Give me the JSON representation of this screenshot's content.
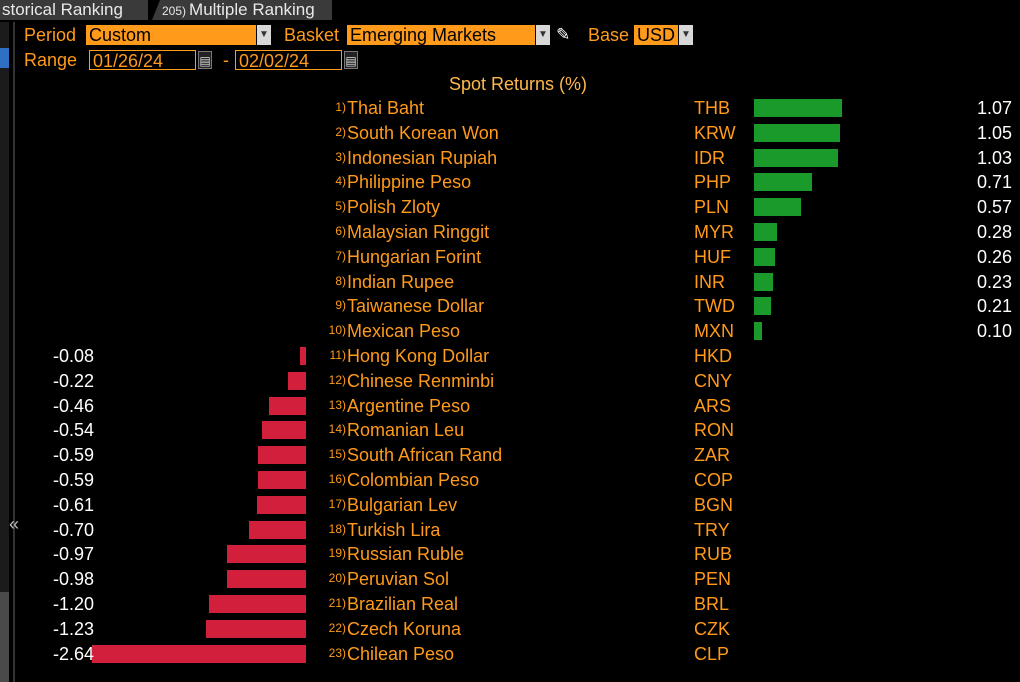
{
  "tabs": [
    {
      "num": "",
      "label": "storical Ranking"
    },
    {
      "num": "205)",
      "label": "Multiple Ranking"
    }
  ],
  "controls": {
    "period_label": "Period",
    "period_value": "Custom",
    "basket_label": "Basket",
    "basket_value": "Emerging Markets",
    "base_label": "Base",
    "base_value": "USD",
    "range_label": "Range",
    "range_start": "01/26/24",
    "range_sep": "-",
    "range_end": "02/02/24"
  },
  "collapse_glyph": "«",
  "chart_data": {
    "type": "bar",
    "title": "Spot Returns (%)",
    "columns": [
      "rank",
      "name",
      "code",
      "value"
    ],
    "rows": [
      {
        "rank": "1)",
        "name": "Thai Baht",
        "code": "THB",
        "value": 1.07
      },
      {
        "rank": "2)",
        "name": "South Korean Won",
        "code": "KRW",
        "value": 1.05
      },
      {
        "rank": "3)",
        "name": "Indonesian Rupiah",
        "code": "IDR",
        "value": 1.03
      },
      {
        "rank": "4)",
        "name": "Philippine Peso",
        "code": "PHP",
        "value": 0.71
      },
      {
        "rank": "5)",
        "name": "Polish Zloty",
        "code": "PLN",
        "value": 0.57
      },
      {
        "rank": "6)",
        "name": "Malaysian Ringgit",
        "code": "MYR",
        "value": 0.28
      },
      {
        "rank": "7)",
        "name": "Hungarian Forint",
        "code": "HUF",
        "value": 0.26
      },
      {
        "rank": "8)",
        "name": "Indian Rupee",
        "code": "INR",
        "value": 0.23
      },
      {
        "rank": "9)",
        "name": "Taiwanese Dollar",
        "code": "TWD",
        "value": 0.21
      },
      {
        "rank": "10)",
        "name": "Mexican Peso",
        "code": "MXN",
        "value": 0.1
      },
      {
        "rank": "11)",
        "name": "Hong Kong Dollar",
        "code": "HKD",
        "value": -0.08
      },
      {
        "rank": "12)",
        "name": "Chinese Renminbi",
        "code": "CNY",
        "value": -0.22
      },
      {
        "rank": "13)",
        "name": "Argentine Peso",
        "code": "ARS",
        "value": -0.46
      },
      {
        "rank": "14)",
        "name": "Romanian Leu",
        "code": "RON",
        "value": -0.54
      },
      {
        "rank": "15)",
        "name": "South African Rand",
        "code": "ZAR",
        "value": -0.59
      },
      {
        "rank": "16)",
        "name": "Colombian Peso",
        "code": "COP",
        "value": -0.59
      },
      {
        "rank": "17)",
        "name": "Bulgarian Lev",
        "code": "BGN",
        "value": -0.61
      },
      {
        "rank": "18)",
        "name": "Turkish Lira",
        "code": "TRY",
        "value": -0.7
      },
      {
        "rank": "19)",
        "name": "Russian Ruble",
        "code": "RUB",
        "value": -0.97
      },
      {
        "rank": "20)",
        "name": "Peruvian Sol",
        "code": "PEN",
        "value": -0.98
      },
      {
        "rank": "21)",
        "name": "Brazilian Real",
        "code": "BRL",
        "value": -1.2
      },
      {
        "rank": "22)",
        "name": "Czech Koruna",
        "code": "CZK",
        "value": -1.23
      },
      {
        "rank": "23)",
        "name": "Chilean Peso",
        "code": "CLP",
        "value": -2.64
      }
    ]
  },
  "colors": {
    "positive": "#1a9a2a",
    "negative": "#d21f3c",
    "accent": "#ff9a1a"
  }
}
